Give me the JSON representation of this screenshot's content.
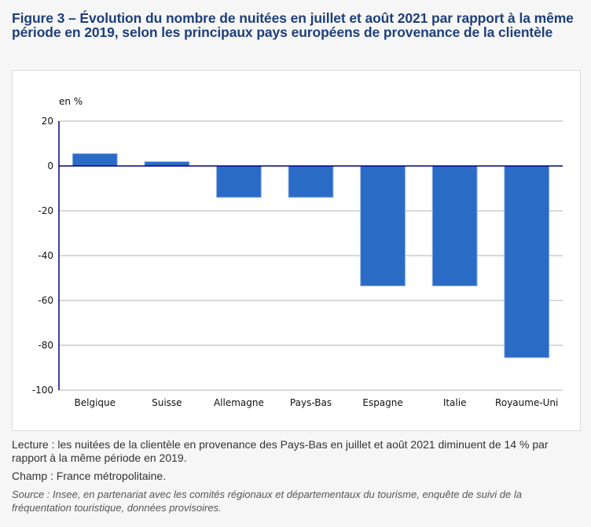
{
  "figure": {
    "title": "Figure 3 – Évolution du nombre de nuitées en juillet et août 2021 par rapport à la même période en 2019, selon les principaux pays européens de provenance de la clientèle",
    "lecture": "Lecture : les nuitées de la clientèle en provenance des Pays-Bas en juillet et août 2021 diminuent de 14 % par rapport à la même période en 2019.",
    "champ": "Champ : France métropolitaine.",
    "source": "Source : Insee, en partenariat avec les comités régionaux et départementaux du tourisme, enquête de suivi de la fréquentation touristique, données provisoires."
  },
  "colors": {
    "bar": "#2a6bc6",
    "axis": "#00008b",
    "grid": "#cccccc",
    "title": "#1d3f7a"
  },
  "chart_data": {
    "type": "bar",
    "title": "Évolution du nombre de nuitées en juillet et août 2021 par rapport à la même période en 2019, selon les principaux pays européens de provenance de la clientèle",
    "xlabel": "",
    "ylabel": "en %",
    "categories": [
      "Belgique",
      "Suisse",
      "Allemagne",
      "Pays-Bas",
      "Espagne",
      "Italie",
      "Royaume-Uni"
    ],
    "values": [
      5.5,
      1.9,
      -14,
      -14,
      -53.5,
      -53.5,
      -85.5
    ],
    "ylim": [
      -100,
      20
    ],
    "yticks": [
      20,
      0,
      -20,
      -40,
      -60,
      -80,
      -100
    ],
    "ytick_labels": [
      "20",
      "0",
      "-20",
      "-40",
      "-60",
      "-80",
      "-100"
    ],
    "grid": true,
    "legend": "none"
  }
}
